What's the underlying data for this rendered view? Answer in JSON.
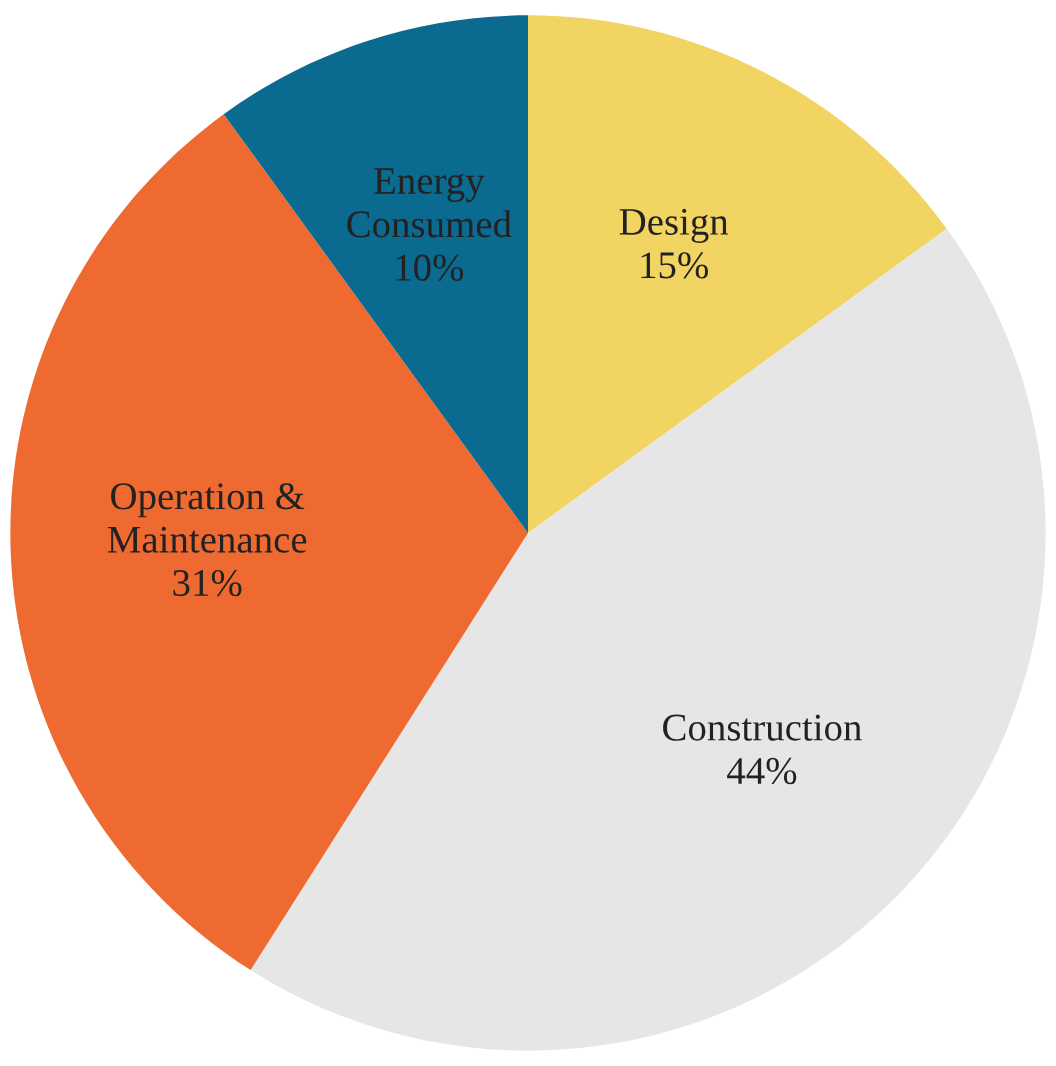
{
  "chart_data": {
    "type": "pie",
    "categories": [
      "Design",
      "Construction",
      "Operation & Maintenance",
      "Energy Consumed"
    ],
    "values": [
      15,
      44,
      31,
      10
    ],
    "colors": [
      "#f2d462",
      "#e6e6e6",
      "#ee6a30",
      "#0b6a8f"
    ],
    "value_labels": [
      "15%",
      "44%",
      "31%",
      "10%"
    ]
  }
}
